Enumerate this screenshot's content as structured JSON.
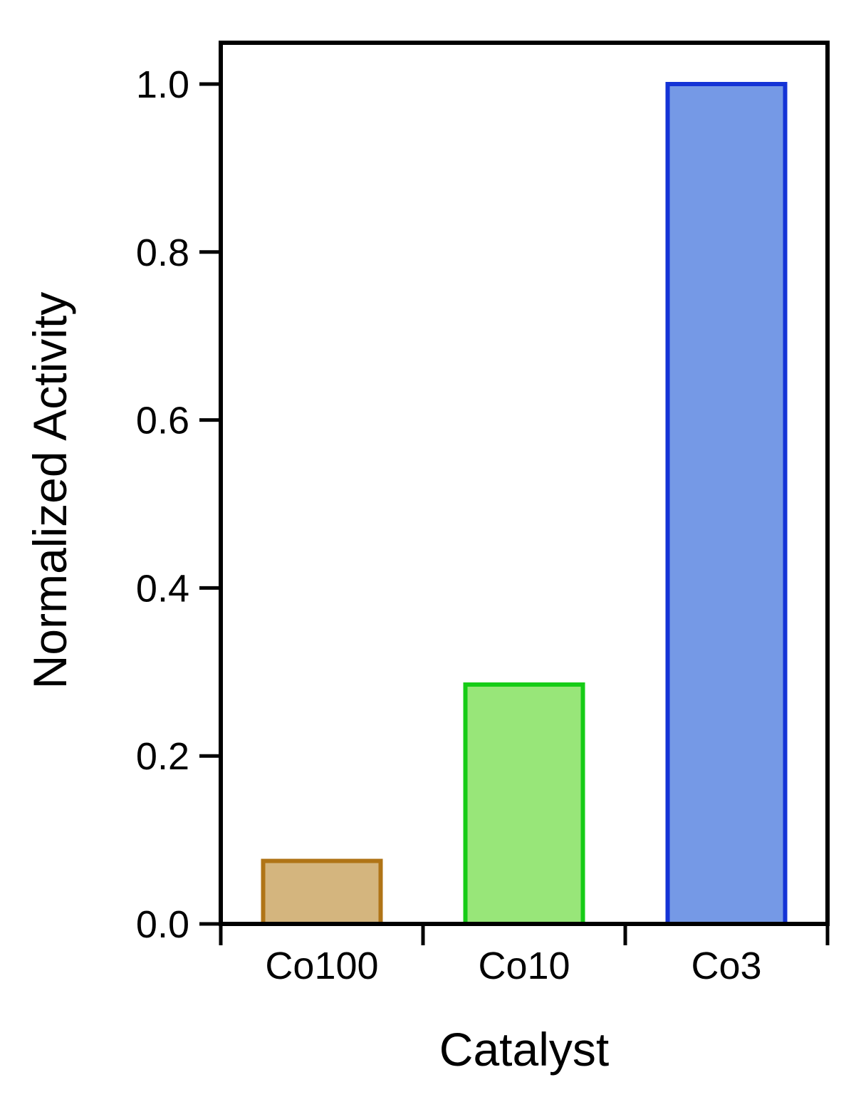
{
  "chart_data": {
    "type": "bar",
    "categories": [
      "Co100",
      "Co10",
      "Co3"
    ],
    "values": [
      0.075,
      0.285,
      1.0
    ],
    "bar_fill_colors": [
      "#d4b57e",
      "#98e679",
      "#7599e6"
    ],
    "bar_edge_colors": [
      "#b07416",
      "#16cc16",
      "#1433d6"
    ],
    "xlabel": "Catalyst",
    "ylabel": "Normalized Activity",
    "ylim": [
      0,
      1.0
    ],
    "yticks": [
      0.0,
      0.2,
      0.4,
      0.6,
      0.8,
      1.0
    ],
    "ytick_labels": [
      "0.0",
      "0.2",
      "0.4",
      "0.6",
      "0.8",
      "1.0"
    ],
    "grid": false,
    "legend": false
  }
}
